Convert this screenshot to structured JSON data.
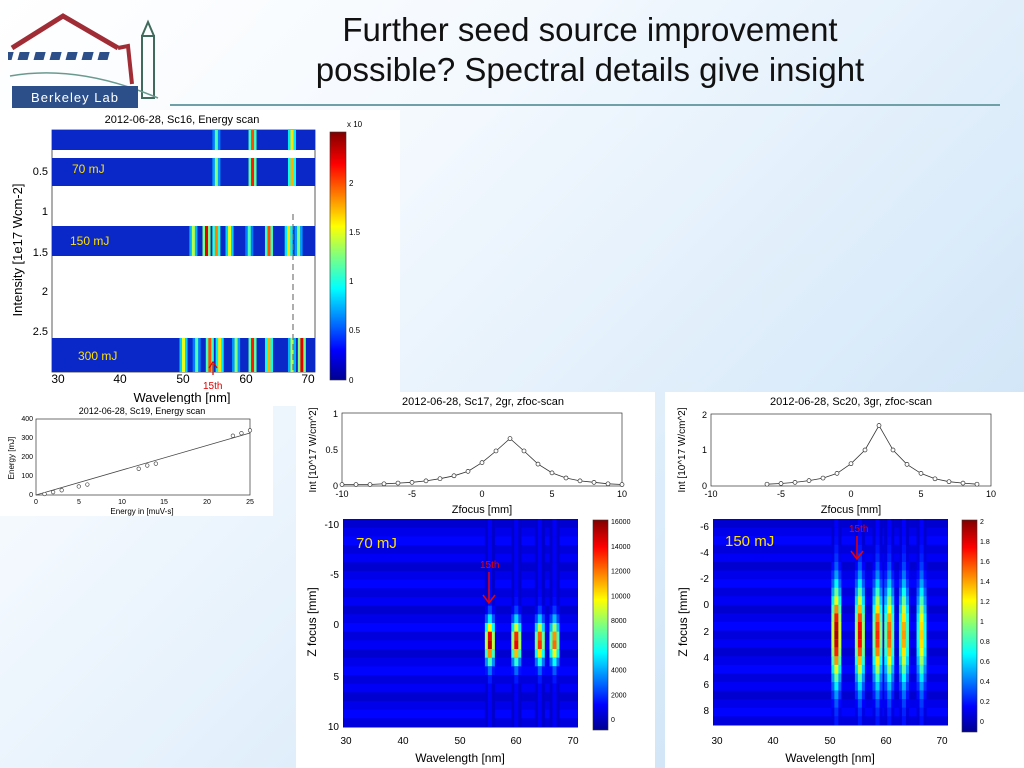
{
  "slide": {
    "title_line1": "Further seed source improvement",
    "title_line2": "possible? Spectral details give insight",
    "logo_text": "Berkeley Lab"
  },
  "chart_data": [
    {
      "id": "sc16",
      "type": "heatmap",
      "title": "2012-06-28, Sc16, Energy scan",
      "xlabel": "Wavelength [nm]",
      "ylabel": "Intensity [1e17 Wcm-2]",
      "xlim": [
        30,
        70
      ],
      "xticks": [
        "30",
        "40",
        "50",
        "60",
        "70"
      ],
      "yticks": [
        "0.5",
        "1",
        "1.5",
        "2",
        "2.5"
      ],
      "colorbar_ticks": [
        "0",
        "0.5",
        "1",
        "1.5",
        "2"
      ],
      "colorbar_exp": "x 10",
      "bands": [
        {
          "label": "70 mJ",
          "lines_nm": [
            55,
            60.5,
            66.5
          ]
        },
        {
          "label": "150 mJ",
          "lines_nm": [
            51.5,
            53.5,
            55,
            57,
            60,
            63,
            66,
            67.5
          ]
        },
        {
          "label": "300 mJ",
          "lines_nm": [
            50,
            52,
            54,
            55.5,
            58,
            60.5,
            63,
            66.5,
            68
          ]
        }
      ],
      "annotation": "15th"
    },
    {
      "id": "sc19",
      "type": "line",
      "title": "2012-06-28, Sc19, Energy scan",
      "xlabel": "Energy in [muV-s]",
      "ylabel": "Energy [mJ]",
      "xlim": [
        0,
        25
      ],
      "ylim": [
        0,
        400
      ],
      "xticks": [
        "0",
        "5",
        "10",
        "15",
        "20",
        "25"
      ],
      "yticks": [
        "0",
        "100",
        "200",
        "300",
        "400"
      ],
      "x": [
        1,
        2,
        3,
        5,
        6,
        12,
        13,
        14,
        23,
        24,
        25
      ],
      "y": [
        5,
        15,
        25,
        45,
        55,
        138,
        155,
        165,
        312,
        325,
        340
      ]
    },
    {
      "id": "sc17",
      "type": "heatmap",
      "title": "2012-06-28, Sc17, 2gr, zfoc-scan",
      "line_xlabel": "Zfocus [mm]",
      "line_ylabel": "Int [10^17 W/cm^2]",
      "line_xlim": [
        -10,
        10
      ],
      "line_ylim": [
        0,
        1
      ],
      "line_xticks": [
        "-10",
        "-5",
        "0",
        "5",
        "10"
      ],
      "line_yticks": [
        "0",
        "0.5",
        "1"
      ],
      "line_x": [
        -10,
        -9,
        -8,
        -7,
        -6,
        -5,
        -4,
        -3,
        -2,
        -1,
        0,
        1,
        2,
        3,
        4,
        5,
        6,
        7,
        8,
        9,
        10
      ],
      "line_y": [
        0.02,
        0.02,
        0.02,
        0.03,
        0.04,
        0.05,
        0.07,
        0.1,
        0.14,
        0.2,
        0.32,
        0.48,
        0.65,
        0.48,
        0.3,
        0.18,
        0.11,
        0.07,
        0.05,
        0.03,
        0.02
      ],
      "xlabel": "Wavelength [nm]",
      "ylabel": "Z focus [mm]",
      "xlim": [
        30,
        70
      ],
      "ylim": [
        -10,
        10
      ],
      "xticks": [
        "30",
        "40",
        "50",
        "60",
        "70"
      ],
      "yticks": [
        "-10",
        "-5",
        "0",
        "5",
        "10"
      ],
      "colorbar_ticks": [
        "0",
        "2000",
        "4000",
        "6000",
        "8000",
        "10000",
        "12000",
        "14000",
        "16000"
      ],
      "label": "70 mJ",
      "annotation": "15th",
      "lines_nm": [
        55,
        59.5,
        63.5,
        66
      ]
    },
    {
      "id": "sc20",
      "type": "heatmap",
      "title": "2012-06-28, Sc20, 3gr, zfoc-scan",
      "line_xlabel": "Zfocus [mm]",
      "line_ylabel": "Int [10^17 W/cm^2]",
      "line_xlim": [
        -10,
        10
      ],
      "line_ylim": [
        0,
        2
      ],
      "line_xticks": [
        "-10",
        "-5",
        "0",
        "5",
        "10"
      ],
      "line_yticks": [
        "0",
        "1",
        "2"
      ],
      "line_x": [
        -6,
        -5,
        -4,
        -3,
        -2,
        -1,
        0,
        1,
        2,
        3,
        4,
        5,
        6,
        7,
        8,
        9
      ],
      "line_y": [
        0.05,
        0.07,
        0.1,
        0.15,
        0.22,
        0.35,
        0.62,
        1.0,
        1.68,
        1.0,
        0.6,
        0.35,
        0.2,
        0.12,
        0.08,
        0.05
      ],
      "xlabel": "Wavelength [nm]",
      "ylabel": "Z focus [mm]",
      "xlim": [
        30,
        70
      ],
      "ylim": [
        -7,
        10
      ],
      "xticks": [
        "30",
        "40",
        "50",
        "60",
        "70"
      ],
      "yticks": [
        "-6",
        "-4",
        "-2",
        "0",
        "2",
        "4",
        "6",
        "8"
      ],
      "colorbar_ticks": [
        "0",
        "0.2",
        "0.4",
        "0.6",
        "0.8",
        "1",
        "1.2",
        "1.4",
        "1.6",
        "1.8",
        "2"
      ],
      "label": "150 mJ",
      "annotation": "15th",
      "lines_nm": [
        51,
        55,
        58,
        60,
        62.5,
        65.5
      ]
    }
  ]
}
